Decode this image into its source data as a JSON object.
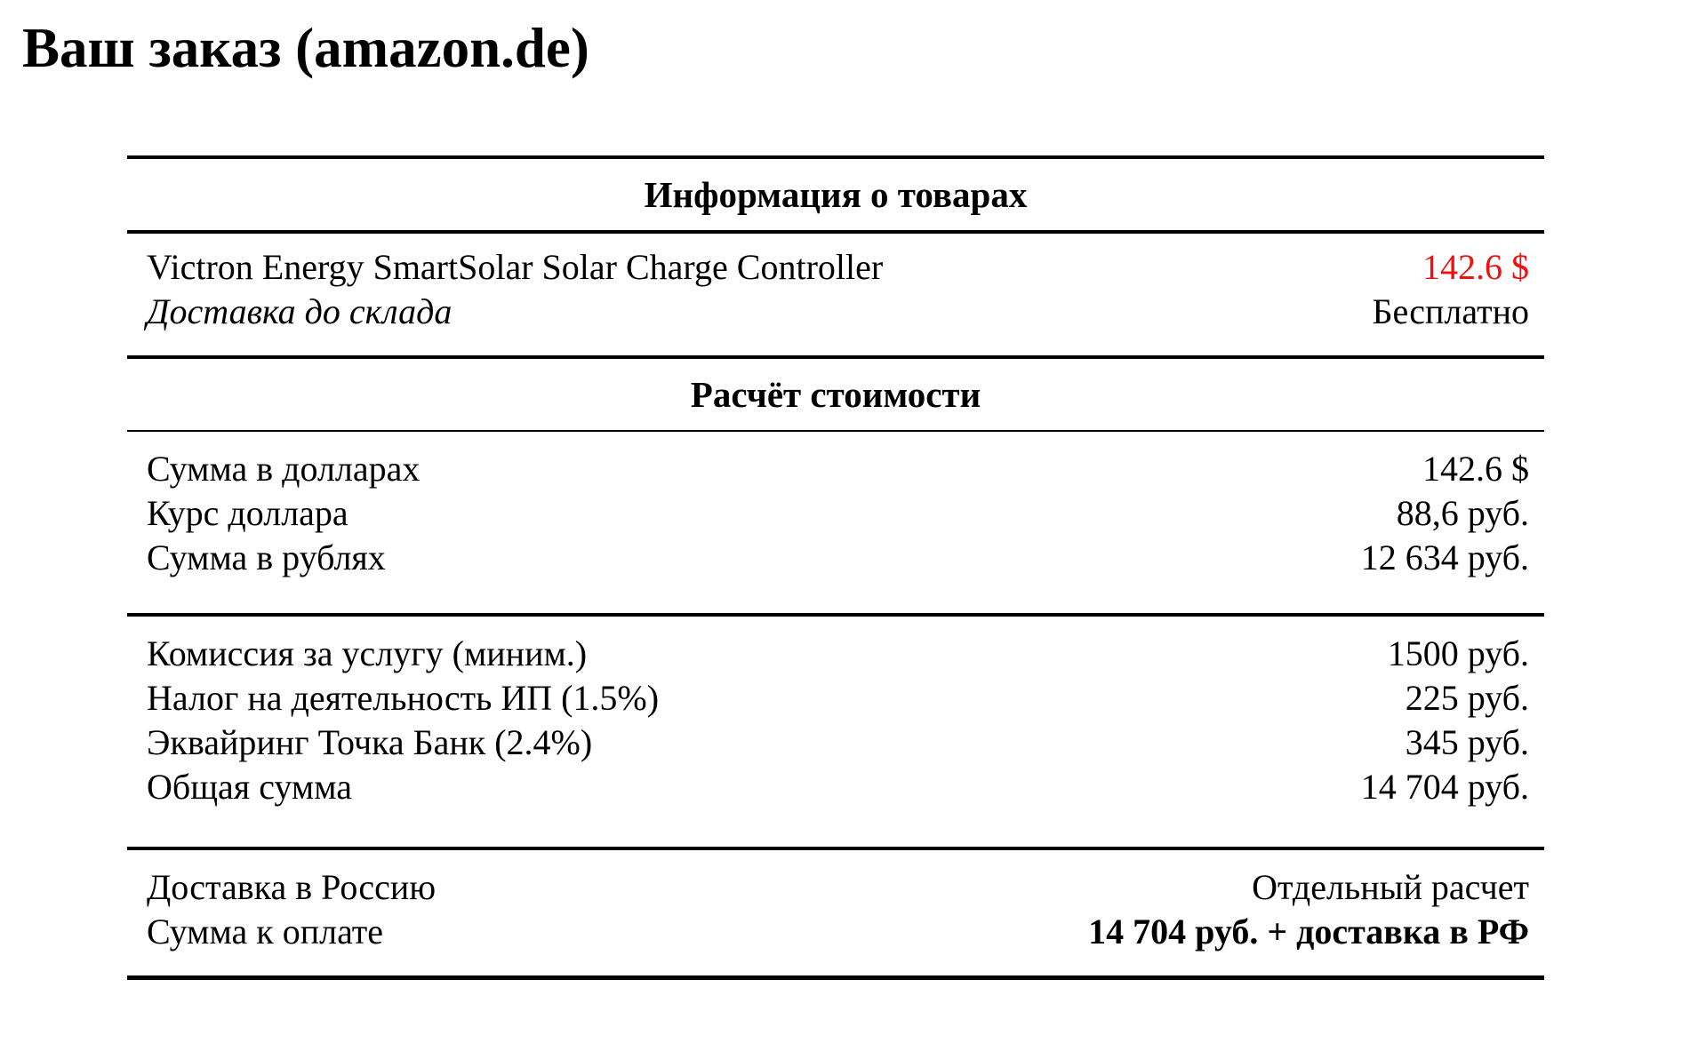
{
  "title": "Ваш заказ (amazon.de)",
  "colors": {
    "price_red": "#ee1111",
    "text": "#000000",
    "background": "#ffffff"
  },
  "products": {
    "header": "Информация о товарах",
    "rows": [
      {
        "label": "Victron Energy SmartSolar Solar Charge Controller",
        "value": "142.6 $"
      },
      {
        "label": "Доставка до склада",
        "value": "Бесплатно"
      }
    ]
  },
  "calc": {
    "header": "Расчёт стоимости",
    "currency_rows": [
      {
        "label": "Сумма в долларах",
        "value": "142.6 $"
      },
      {
        "label": "Курс доллара",
        "value": "88,6 руб."
      },
      {
        "label": "Сумма в рублях",
        "value": "12 634 руб."
      }
    ],
    "fee_rows": [
      {
        "label": "Комиссия за услугу (миним.)",
        "value": "1500 руб."
      },
      {
        "label": "Налог на деятельность ИП (1.5%)",
        "value": "225 руб."
      },
      {
        "label": "Эквайринг Точка Банк (2.4%)",
        "value": "345 руб."
      },
      {
        "label": "Общая сумма",
        "value": "14 704 руб."
      }
    ],
    "total_rows": [
      {
        "label": "Доставка в Россию",
        "value": "Отдельный расчет"
      },
      {
        "label": "Сумма к оплате",
        "value": "14 704 руб. + доставка в РФ"
      }
    ]
  }
}
